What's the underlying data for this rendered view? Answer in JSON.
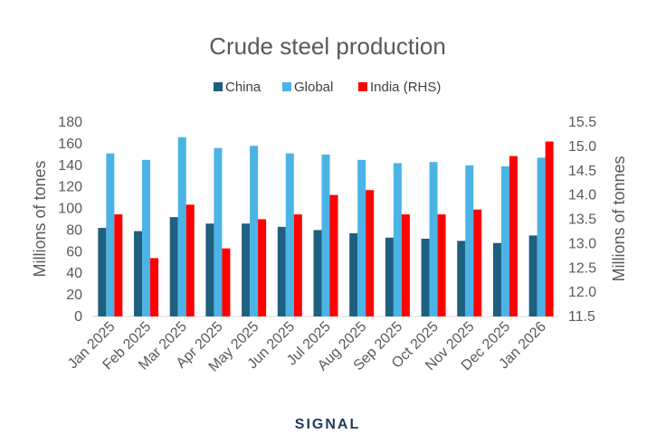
{
  "chart_data": {
    "type": "bar",
    "title": "Crude steel production",
    "categories": [
      "Jan 2025",
      "Feb 2025",
      "Mar 2025",
      "Apr 2025",
      "May 2025",
      "Jun 2025",
      "Jul 2025",
      "Aug 2025",
      "Sep 2025",
      "Oct 2025",
      "Nov 2025",
      "Dec 2025",
      "Jan 2026"
    ],
    "series": [
      {
        "name": "China",
        "axis": "left",
        "color": "#1f5f7f",
        "values": [
          82,
          79,
          92,
          86,
          86,
          83,
          80,
          77,
          73,
          72,
          70,
          68,
          75
        ]
      },
      {
        "name": "Global",
        "axis": "left",
        "color": "#4bb3e6",
        "values": [
          151,
          145,
          166,
          156,
          158,
          151,
          150,
          145,
          142,
          143,
          140,
          139,
          147
        ]
      },
      {
        "name": "India (RHS)",
        "axis": "right",
        "color": "#ff0000",
        "values": [
          13.6,
          12.7,
          13.8,
          12.9,
          13.5,
          13.6,
          14.0,
          14.1,
          13.6,
          13.6,
          13.7,
          14.8,
          15.1
        ]
      }
    ],
    "ylabel": "Millions of tones",
    "y2label": "Millions of tonnes",
    "ylim": [
      0,
      180
    ],
    "y2lim": [
      11.5,
      15.5
    ],
    "yticks": [
      "0",
      "20",
      "40",
      "60",
      "80",
      "100",
      "120",
      "140",
      "160",
      "180"
    ],
    "y2ticks": [
      "11.5",
      "12.0",
      "12.5",
      "13.0",
      "13.5",
      "14.0",
      "14.5",
      "15.0",
      "15.5"
    ],
    "grid": false,
    "legend": "top-center"
  },
  "footer": {
    "logo_text": "SIGNAL"
  }
}
